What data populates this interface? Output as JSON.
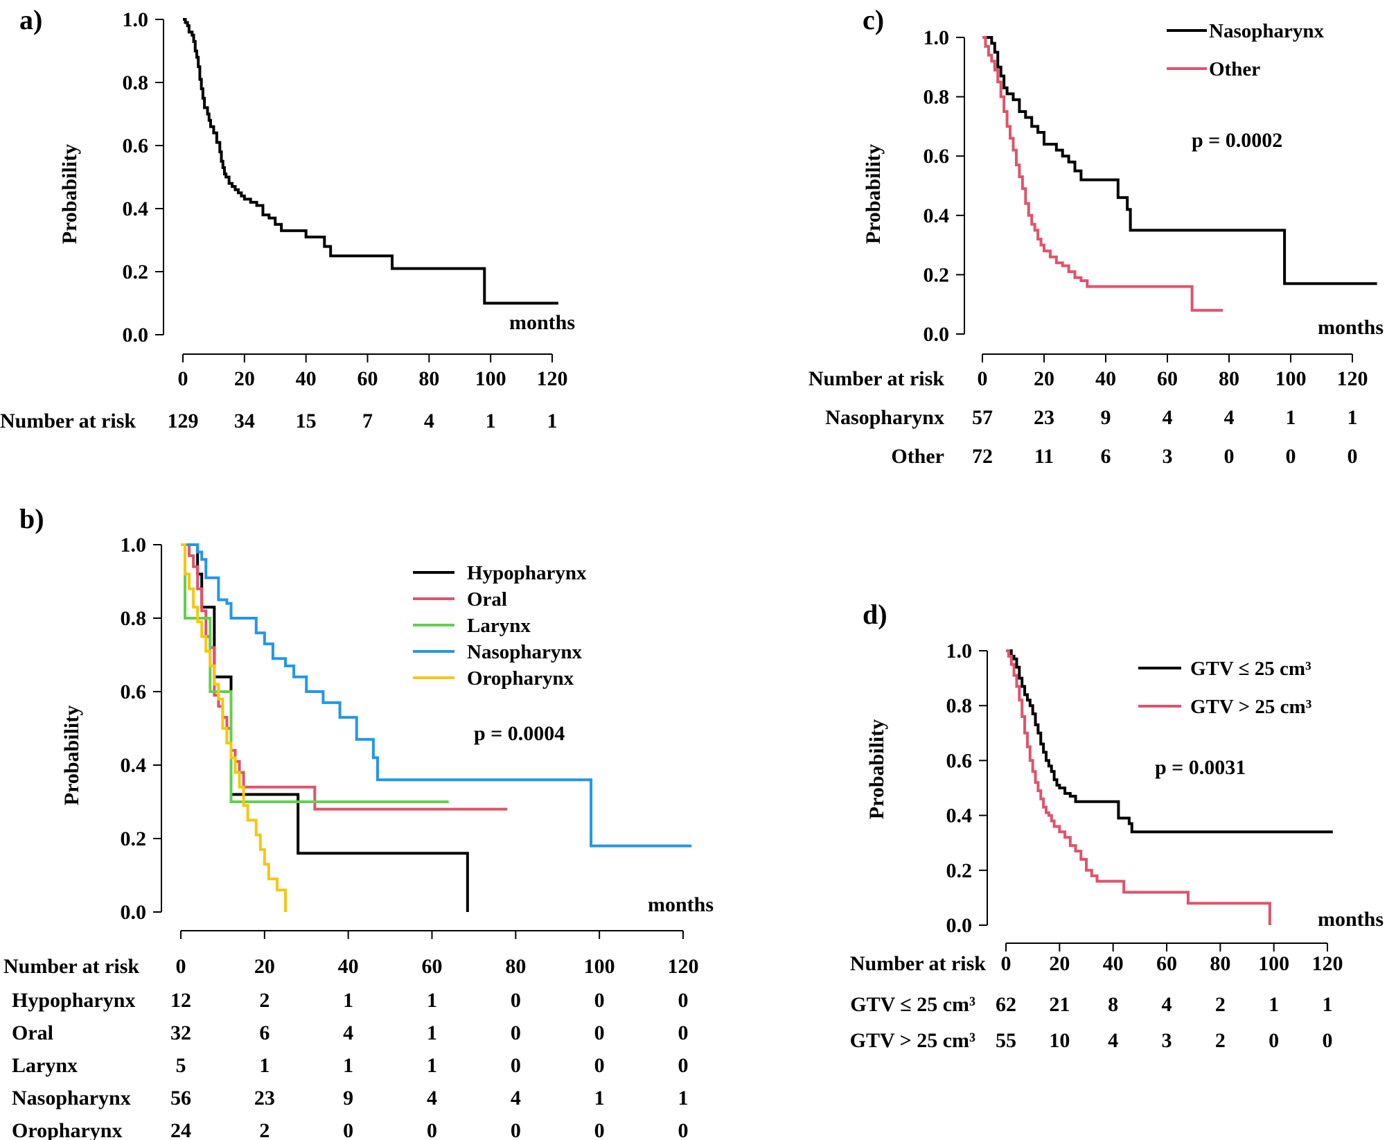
{
  "colors": {
    "black": "#000000",
    "pink": "#df536b",
    "green": "#61d04f",
    "blue": "#2297e6",
    "yellow": "#f5c710"
  },
  "chart_data": [
    {
      "panel": "a)",
      "type": "line",
      "ylabel": "Probability",
      "xunit": "months",
      "xlim": [
        0,
        120
      ],
      "ylim": [
        0,
        1
      ],
      "xticks": [
        "0",
        "20",
        "40",
        "60",
        "80",
        "100",
        "120"
      ],
      "yticks": [
        "0.0",
        "0.2",
        "0.4",
        "0.6",
        "0.8",
        "1.0"
      ],
      "pvalue": "",
      "series": [
        {
          "name": "",
          "color": "black",
          "x": [
            0,
            0.8,
            1.5,
            2,
            3,
            3.5,
            4,
            4.5,
            5,
            5.5,
            6,
            6.5,
            7,
            8,
            8.5,
            9,
            10,
            11,
            12,
            12.5,
            13,
            13.5,
            14,
            15,
            16,
            17,
            18,
            19,
            20,
            22,
            24,
            26,
            28,
            30,
            32,
            34,
            36,
            38,
            40,
            42,
            46,
            48,
            50,
            52,
            60,
            68,
            80,
            98,
            110,
            122
          ],
          "y": [
            1.0,
            0.99,
            0.98,
            0.96,
            0.95,
            0.93,
            0.9,
            0.88,
            0.85,
            0.81,
            0.78,
            0.75,
            0.72,
            0.7,
            0.68,
            0.66,
            0.64,
            0.61,
            0.58,
            0.55,
            0.53,
            0.51,
            0.5,
            0.48,
            0.47,
            0.46,
            0.45,
            0.44,
            0.43,
            0.42,
            0.41,
            0.38,
            0.37,
            0.35,
            0.33,
            0.33,
            0.33,
            0.33,
            0.31,
            0.31,
            0.28,
            0.25,
            0.25,
            0.25,
            0.25,
            0.21,
            0.21,
            0.1,
            0.1,
            0.1
          ]
        }
      ],
      "risk_table": {
        "header": "Number at risk",
        "rows": [
          {
            "label": "",
            "values": [
              "129",
              "34",
              "15",
              "7",
              "4",
              "1",
              "1"
            ]
          }
        ]
      }
    },
    {
      "panel": "b)",
      "type": "line",
      "ylabel": "Probability",
      "xunit": "months",
      "xlim": [
        0,
        120
      ],
      "ylim": [
        0,
        1
      ],
      "xticks": [
        "0",
        "20",
        "40",
        "60",
        "80",
        "100",
        "120"
      ],
      "yticks": [
        "0.0",
        "0.2",
        "0.4",
        "0.6",
        "0.8",
        "1.0"
      ],
      "pvalue": "p = 0.0004",
      "series": [
        {
          "name": "Hypopharynx",
          "color": "black",
          "x": [
            0,
            4,
            5,
            8,
            12,
            13,
            28,
            68,
            68.5
          ],
          "y": [
            1.0,
            0.92,
            0.83,
            0.64,
            0.32,
            0.32,
            0.16,
            0.16,
            0.0
          ]
        },
        {
          "name": "Oral",
          "color": "pink",
          "x": [
            0,
            2,
            3,
            4,
            5,
            6,
            7,
            8,
            9,
            10,
            11,
            12,
            13,
            14,
            15,
            32,
            78
          ],
          "y": [
            1.0,
            0.97,
            0.94,
            0.88,
            0.82,
            0.75,
            0.72,
            0.59,
            0.56,
            0.53,
            0.5,
            0.44,
            0.41,
            0.38,
            0.34,
            0.28,
            0.28
          ]
        },
        {
          "name": "Larynx",
          "color": "green",
          "x": [
            0,
            1,
            2,
            7,
            8,
            12,
            64
          ],
          "y": [
            1.0,
            0.8,
            0.8,
            0.6,
            0.6,
            0.3,
            0.3
          ]
        },
        {
          "name": "Nasopharynx",
          "color": "blue",
          "x": [
            0,
            1,
            3,
            4,
            5,
            6,
            9,
            11,
            12,
            13,
            15,
            18,
            20,
            22,
            25,
            27,
            30,
            34,
            38,
            40,
            42,
            46,
            47,
            48,
            98,
            122
          ],
          "y": [
            1.0,
            1.0,
            1.0,
            0.98,
            0.96,
            0.91,
            0.85,
            0.84,
            0.8,
            0.8,
            0.8,
            0.76,
            0.73,
            0.69,
            0.67,
            0.64,
            0.6,
            0.57,
            0.53,
            0.53,
            0.47,
            0.42,
            0.36,
            0.36,
            0.18,
            0.18
          ]
        },
        {
          "name": "Oropharynx",
          "color": "yellow",
          "x": [
            0,
            1,
            2,
            3,
            4,
            5,
            6,
            7,
            8,
            9,
            10,
            11,
            12,
            13,
            14,
            15,
            16,
            18,
            19,
            20,
            21,
            23,
            24,
            25
          ],
          "y": [
            1.0,
            0.92,
            0.88,
            0.83,
            0.79,
            0.75,
            0.71,
            0.67,
            0.62,
            0.58,
            0.5,
            0.46,
            0.42,
            0.38,
            0.34,
            0.29,
            0.25,
            0.21,
            0.17,
            0.13,
            0.09,
            0.06,
            0.06,
            0.0
          ]
        }
      ],
      "risk_table": {
        "header": "Number at risk",
        "rows": [
          {
            "label": "Hypopharynx",
            "values": [
              "12",
              "2",
              "1",
              "1",
              "0",
              "0",
              "0"
            ]
          },
          {
            "label": "Oral",
            "values": [
              "32",
              "6",
              "4",
              "1",
              "0",
              "0",
              "0"
            ]
          },
          {
            "label": "Larynx",
            "values": [
              "5",
              "1",
              "1",
              "1",
              "0",
              "0",
              "0"
            ]
          },
          {
            "label": "Nasopharynx",
            "values": [
              "56",
              "23",
              "9",
              "4",
              "4",
              "1",
              "1"
            ]
          },
          {
            "label": "Oropharynx",
            "values": [
              "24",
              "2",
              "0",
              "0",
              "0",
              "0",
              "0"
            ]
          }
        ]
      }
    },
    {
      "panel": "c)",
      "type": "line",
      "ylabel": "Probability",
      "xunit": "months",
      "xlim": [
        0,
        120
      ],
      "ylim": [
        0,
        1
      ],
      "xticks": [
        "0",
        "20",
        "40",
        "60",
        "80",
        "100",
        "120"
      ],
      "yticks": [
        "0.0",
        "0.2",
        "0.4",
        "0.6",
        "0.8",
        "1.0"
      ],
      "pvalue": "p = 0.0002",
      "series": [
        {
          "name": "Nasopharynx",
          "color": "black",
          "x": [
            0,
            1,
            2,
            3,
            4,
            5,
            6,
            7,
            8,
            10,
            12,
            14,
            16,
            18,
            20,
            24,
            26,
            28,
            30,
            32,
            36,
            40,
            44,
            46,
            47,
            48,
            98,
            128
          ],
          "y": [
            1.0,
            1.0,
            1.0,
            0.98,
            0.95,
            0.9,
            0.87,
            0.83,
            0.81,
            0.79,
            0.75,
            0.73,
            0.7,
            0.68,
            0.64,
            0.62,
            0.6,
            0.58,
            0.55,
            0.52,
            0.52,
            0.52,
            0.46,
            0.46,
            0.42,
            0.35,
            0.17,
            0.17
          ]
        },
        {
          "name": "Other",
          "color": "pink",
          "x": [
            0,
            1,
            2,
            3,
            4,
            5,
            6,
            7,
            8,
            9,
            10,
            11,
            12,
            13,
            14,
            15,
            16,
            17,
            18,
            19,
            20,
            22,
            24,
            26,
            28,
            30,
            32,
            34,
            36,
            38,
            40,
            44,
            50,
            56,
            60,
            68,
            78
          ],
          "y": [
            1.0,
            0.97,
            0.94,
            0.92,
            0.89,
            0.85,
            0.8,
            0.75,
            0.7,
            0.66,
            0.62,
            0.57,
            0.53,
            0.49,
            0.44,
            0.4,
            0.37,
            0.35,
            0.32,
            0.3,
            0.28,
            0.26,
            0.24,
            0.23,
            0.21,
            0.19,
            0.18,
            0.16,
            0.16,
            0.16,
            0.16,
            0.16,
            0.16,
            0.16,
            0.16,
            0.08,
            0.08
          ]
        }
      ],
      "risk_table": {
        "header": "Number at risk",
        "rows": [
          {
            "label": "Nasopharynx",
            "values": [
              "57",
              "23",
              "9",
              "4",
              "4",
              "1",
              "1"
            ]
          },
          {
            "label": "Other",
            "values": [
              "72",
              "11",
              "6",
              "3",
              "0",
              "0",
              "0"
            ]
          }
        ]
      }
    },
    {
      "panel": "d)",
      "type": "line",
      "ylabel": "Probability",
      "xunit": "months",
      "xlim": [
        0,
        120
      ],
      "ylim": [
        0,
        1
      ],
      "xticks": [
        "0",
        "20",
        "40",
        "60",
        "80",
        "100",
        "120"
      ],
      "yticks": [
        "0.0",
        "0.2",
        "0.4",
        "0.6",
        "0.8",
        "1.0"
      ],
      "pvalue": "p = 0.0031",
      "series": [
        {
          "name": "GTV ≤ 25 cm³",
          "color": "black",
          "x": [
            0,
            1,
            2,
            3,
            4,
            5,
            6,
            7,
            8,
            9,
            10,
            11,
            12,
            13,
            14,
            15,
            16,
            17,
            18,
            19,
            20,
            22,
            24,
            26,
            28,
            30,
            34,
            38,
            42,
            44,
            46,
            47,
            48,
            60,
            80,
            100,
            122
          ],
          "y": [
            1.0,
            1.0,
            0.98,
            0.97,
            0.94,
            0.9,
            0.87,
            0.84,
            0.82,
            0.8,
            0.77,
            0.73,
            0.7,
            0.66,
            0.63,
            0.6,
            0.58,
            0.56,
            0.53,
            0.51,
            0.5,
            0.48,
            0.47,
            0.45,
            0.45,
            0.45,
            0.45,
            0.45,
            0.39,
            0.39,
            0.37,
            0.34,
            0.34,
            0.34,
            0.34,
            0.34,
            0.34
          ]
        },
        {
          "name": "GTV > 25 cm³",
          "color": "pink",
          "x": [
            0,
            1,
            2,
            3,
            4,
            5,
            6,
            7,
            8,
            9,
            10,
            11,
            12,
            13,
            14,
            15,
            16,
            17,
            18,
            20,
            22,
            24,
            26,
            28,
            30,
            32,
            34,
            36,
            40,
            44,
            50,
            56,
            60,
            68,
            80,
            98,
            98.5
          ],
          "y": [
            1.0,
            0.98,
            0.95,
            0.91,
            0.87,
            0.82,
            0.76,
            0.7,
            0.65,
            0.6,
            0.56,
            0.52,
            0.49,
            0.46,
            0.43,
            0.41,
            0.4,
            0.38,
            0.36,
            0.34,
            0.32,
            0.29,
            0.27,
            0.24,
            0.2,
            0.18,
            0.16,
            0.16,
            0.16,
            0.12,
            0.12,
            0.12,
            0.12,
            0.08,
            0.08,
            0.08,
            0.0
          ]
        }
      ],
      "risk_table": {
        "header": "Number at risk",
        "rows": [
          {
            "label": "GTV ≤ 25 cm³",
            "values": [
              "62",
              "21",
              "8",
              "4",
              "2",
              "1",
              "1"
            ]
          },
          {
            "label": "GTV > 25 cm³",
            "values": [
              "55",
              "10",
              "4",
              "3",
              "2",
              "0",
              "0"
            ]
          }
        ]
      }
    }
  ]
}
